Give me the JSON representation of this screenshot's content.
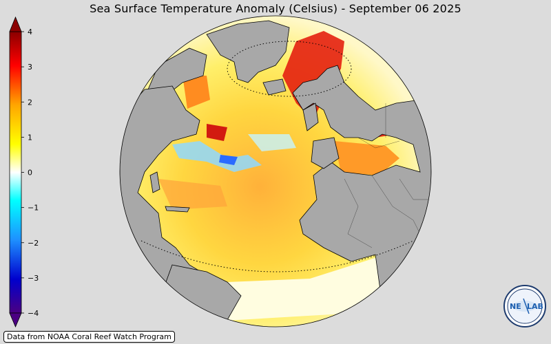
{
  "title": "Sea Surface Temperature Anomaly (Celsius) - September 06 2025",
  "colorbar": {
    "ticks": [
      "4",
      "3",
      "2",
      "1",
      "0",
      "−1",
      "−2",
      "−3",
      "−4"
    ],
    "colors": [
      "#4b0082",
      "#0000cd",
      "#1e90ff",
      "#00ffff",
      "#ffffff",
      "#ffff00",
      "#ffa500",
      "#ff0000",
      "#8b0000"
    ]
  },
  "map": {
    "ocean_note": "",
    "land_color": "#a8a8a8",
    "background": "#dcdcdc"
  },
  "credit": "Data from NOAA Coral Reef Watch Program",
  "logo": {
    "text_left": "NE",
    "text_right": "LAB"
  }
}
